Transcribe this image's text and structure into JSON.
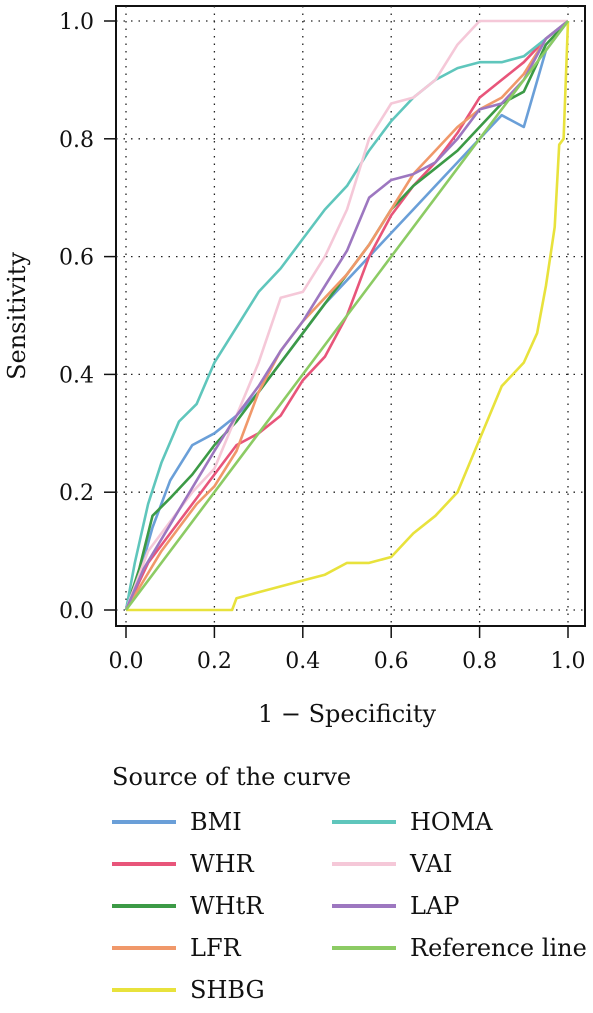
{
  "chart_data": {
    "type": "line",
    "title": "",
    "xlabel": "1 − Specificity",
    "ylabel": "Sensitivity",
    "xlim": [
      0.0,
      1.0
    ],
    "ylim": [
      0.0,
      1.0
    ],
    "x_ticks": [
      "0.0",
      "0.2",
      "0.4",
      "0.6",
      "0.8",
      "1.0"
    ],
    "y_ticks": [
      "0.0",
      "0.2",
      "0.4",
      "0.6",
      "0.8",
      "1.0"
    ],
    "grid": true,
    "legend_title": "Source of the curve",
    "legend_position": "bottom",
    "series": [
      {
        "name": "BMI",
        "color": "#6a9fd8",
        "x": [
          0,
          0.03,
          0.06,
          0.1,
          0.15,
          0.2,
          0.25,
          0.3,
          0.35,
          0.4,
          0.45,
          0.5,
          0.55,
          0.6,
          0.65,
          0.7,
          0.75,
          0.8,
          0.85,
          0.9,
          0.95,
          1.0
        ],
        "y": [
          0,
          0.06,
          0.14,
          0.22,
          0.28,
          0.3,
          0.33,
          0.37,
          0.42,
          0.47,
          0.52,
          0.56,
          0.6,
          0.64,
          0.68,
          0.72,
          0.76,
          0.8,
          0.84,
          0.82,
          0.95,
          1.0
        ]
      },
      {
        "name": "WHR",
        "color": "#e8557a",
        "x": [
          0,
          0.05,
          0.1,
          0.15,
          0.2,
          0.25,
          0.3,
          0.35,
          0.4,
          0.45,
          0.5,
          0.55,
          0.6,
          0.65,
          0.7,
          0.75,
          0.8,
          0.85,
          0.9,
          0.95,
          1.0
        ],
        "y": [
          0,
          0.08,
          0.13,
          0.18,
          0.23,
          0.28,
          0.3,
          0.33,
          0.39,
          0.43,
          0.5,
          0.6,
          0.67,
          0.72,
          0.76,
          0.81,
          0.87,
          0.9,
          0.93,
          0.97,
          1.0
        ]
      },
      {
        "name": "WHtR",
        "color": "#3c9a46",
        "x": [
          0,
          0.03,
          0.06,
          0.1,
          0.15,
          0.2,
          0.25,
          0.3,
          0.35,
          0.4,
          0.45,
          0.5,
          0.55,
          0.6,
          0.65,
          0.7,
          0.75,
          0.8,
          0.85,
          0.9,
          0.95,
          1.0
        ],
        "y": [
          0,
          0.07,
          0.16,
          0.19,
          0.23,
          0.28,
          0.32,
          0.37,
          0.42,
          0.47,
          0.52,
          0.57,
          0.62,
          0.68,
          0.72,
          0.75,
          0.78,
          0.82,
          0.86,
          0.88,
          0.96,
          1.0
        ]
      },
      {
        "name": "LFR",
        "color": "#f0986a",
        "x": [
          0,
          0.04,
          0.08,
          0.12,
          0.16,
          0.2,
          0.25,
          0.3,
          0.35,
          0.4,
          0.45,
          0.5,
          0.55,
          0.6,
          0.65,
          0.7,
          0.75,
          0.8,
          0.85,
          0.9,
          0.95,
          1.0
        ],
        "y": [
          0,
          0.05,
          0.1,
          0.14,
          0.18,
          0.21,
          0.27,
          0.37,
          0.44,
          0.49,
          0.53,
          0.57,
          0.62,
          0.68,
          0.74,
          0.78,
          0.82,
          0.85,
          0.87,
          0.91,
          0.97,
          1.0
        ]
      },
      {
        "name": "SHBG",
        "color": "#e8e23c",
        "x": [
          0,
          0.24,
          0.25,
          0.3,
          0.35,
          0.4,
          0.45,
          0.5,
          0.55,
          0.6,
          0.65,
          0.7,
          0.75,
          0.8,
          0.85,
          0.9,
          0.93,
          0.95,
          0.96,
          0.97,
          0.98,
          0.99,
          1.0
        ],
        "y": [
          0,
          0.0,
          0.02,
          0.03,
          0.04,
          0.05,
          0.06,
          0.08,
          0.08,
          0.09,
          0.13,
          0.16,
          0.2,
          0.29,
          0.38,
          0.42,
          0.47,
          0.55,
          0.6,
          0.65,
          0.79,
          0.8,
          1.0
        ]
      },
      {
        "name": "HOMA",
        "color": "#5fc6bc",
        "x": [
          0,
          0.02,
          0.05,
          0.08,
          0.12,
          0.16,
          0.2,
          0.25,
          0.3,
          0.35,
          0.4,
          0.45,
          0.5,
          0.55,
          0.6,
          0.65,
          0.7,
          0.75,
          0.8,
          0.85,
          0.9,
          0.95,
          1.0
        ],
        "y": [
          0,
          0.08,
          0.18,
          0.25,
          0.32,
          0.35,
          0.42,
          0.48,
          0.54,
          0.58,
          0.63,
          0.68,
          0.72,
          0.78,
          0.83,
          0.87,
          0.9,
          0.92,
          0.93,
          0.93,
          0.94,
          0.97,
          1.0
        ]
      },
      {
        "name": "VAI",
        "color": "#f5c8d8",
        "x": [
          0,
          0.05,
          0.1,
          0.15,
          0.2,
          0.25,
          0.3,
          0.35,
          0.4,
          0.45,
          0.5,
          0.55,
          0.6,
          0.65,
          0.7,
          0.75,
          0.8,
          0.85,
          0.9,
          0.95,
          1.0
        ],
        "y": [
          0,
          0.1,
          0.15,
          0.2,
          0.24,
          0.33,
          0.42,
          0.53,
          0.54,
          0.6,
          0.68,
          0.8,
          0.86,
          0.87,
          0.9,
          0.96,
          1.0,
          1.0,
          1.0,
          1.0,
          1.0
        ]
      },
      {
        "name": "LAP",
        "color": "#9d77c0",
        "x": [
          0,
          0.04,
          0.08,
          0.12,
          0.16,
          0.2,
          0.25,
          0.3,
          0.35,
          0.4,
          0.45,
          0.5,
          0.55,
          0.6,
          0.65,
          0.7,
          0.75,
          0.8,
          0.85,
          0.9,
          0.95,
          1.0
        ],
        "y": [
          0,
          0.07,
          0.12,
          0.17,
          0.22,
          0.27,
          0.33,
          0.38,
          0.44,
          0.49,
          0.55,
          0.61,
          0.7,
          0.73,
          0.74,
          0.76,
          0.8,
          0.85,
          0.86,
          0.9,
          0.97,
          1.0
        ]
      },
      {
        "name": "Reference line",
        "color": "#8ccb64",
        "x": [
          0,
          1.0
        ],
        "y": [
          0,
          1.0
        ]
      }
    ]
  }
}
